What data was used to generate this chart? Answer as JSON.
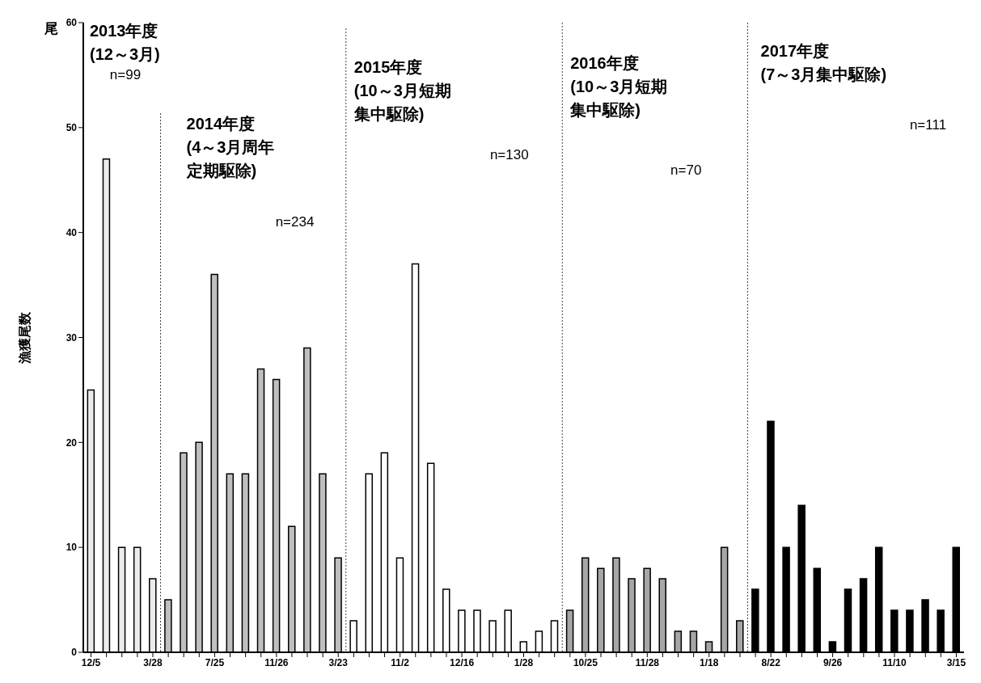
{
  "chart_data": {
    "type": "bar",
    "ylabel": "漁獲尾数",
    "categories": [
      "12/5",
      null,
      null,
      null,
      "3/28",
      null,
      null,
      null,
      "7/25",
      null,
      null,
      null,
      "11/26",
      null,
      null,
      null,
      "3/23",
      null,
      null,
      null,
      "11/2",
      null,
      null,
      null,
      "12/16",
      null,
      null,
      null,
      "1/28",
      null,
      null,
      null,
      "10/25",
      null,
      null,
      null,
      "11/28",
      null,
      null,
      null,
      "1/18",
      null,
      null,
      null,
      "8/22",
      null,
      null,
      null,
      "9/26",
      null,
      null,
      null,
      "11/10",
      null,
      null,
      null,
      "3/15"
    ],
    "values": [
      25,
      47,
      10,
      10,
      7,
      5,
      19,
      20,
      36,
      17,
      17,
      27,
      26,
      12,
      29,
      17,
      9,
      3,
      17,
      19,
      9,
      37,
      18,
      6,
      4,
      4,
      3,
      4,
      1,
      2,
      3,
      4,
      9,
      8,
      9,
      7,
      8,
      7,
      2,
      2,
      1,
      10,
      3,
      6,
      22,
      10,
      14,
      8,
      1,
      6,
      7,
      10,
      4,
      4,
      5,
      4,
      10
    ],
    "colors": [
      "#ececec",
      "#ececec",
      "#ececec",
      "#ececec",
      "#ececec",
      "#bfbfbf",
      "#bfbfbf",
      "#bfbfbf",
      "#bfbfbf",
      "#bfbfbf",
      "#bfbfbf",
      "#bfbfbf",
      "#bfbfbf",
      "#bfbfbf",
      "#bfbfbf",
      "#bfbfbf",
      "#bfbfbf",
      "#ffffff",
      "#ffffff",
      "#ffffff",
      "#ffffff",
      "#ffffff",
      "#ffffff",
      "#ffffff",
      "#ffffff",
      "#ffffff",
      "#ffffff",
      "#ffffff",
      "#ffffff",
      "#ffffff",
      "#ffffff",
      "#a6a6a6",
      "#a6a6a6",
      "#a6a6a6",
      "#a6a6a6",
      "#a6a6a6",
      "#a6a6a6",
      "#a6a6a6",
      "#a6a6a6",
      "#a6a6a6",
      "#a6a6a6",
      "#a6a6a6",
      "#a6a6a6",
      "#000000",
      "#000000",
      "#000000",
      "#000000",
      "#000000",
      "#000000",
      "#000000",
      "#000000",
      "#000000",
      "#000000",
      "#000000",
      "#000000",
      "#000000",
      "#000000"
    ],
    "ylim": [
      0,
      60
    ],
    "yticks": [
      0,
      10,
      20,
      30,
      40,
      50,
      60
    ],
    "grid": false,
    "legend": false,
    "annotations": [
      "尾",
      "2013年度\n(12～3月)",
      "n=99",
      "2014年度\n(4～3月周年定期駆除)",
      "n=234",
      "2015年度\n(10～3月短期集中駆除)",
      "n=130",
      "2016年度\n(10～3月短期集中駆除)",
      "n=70",
      "2017年度\n(7～3月集中駆除)",
      "n=111"
    ]
  }
}
